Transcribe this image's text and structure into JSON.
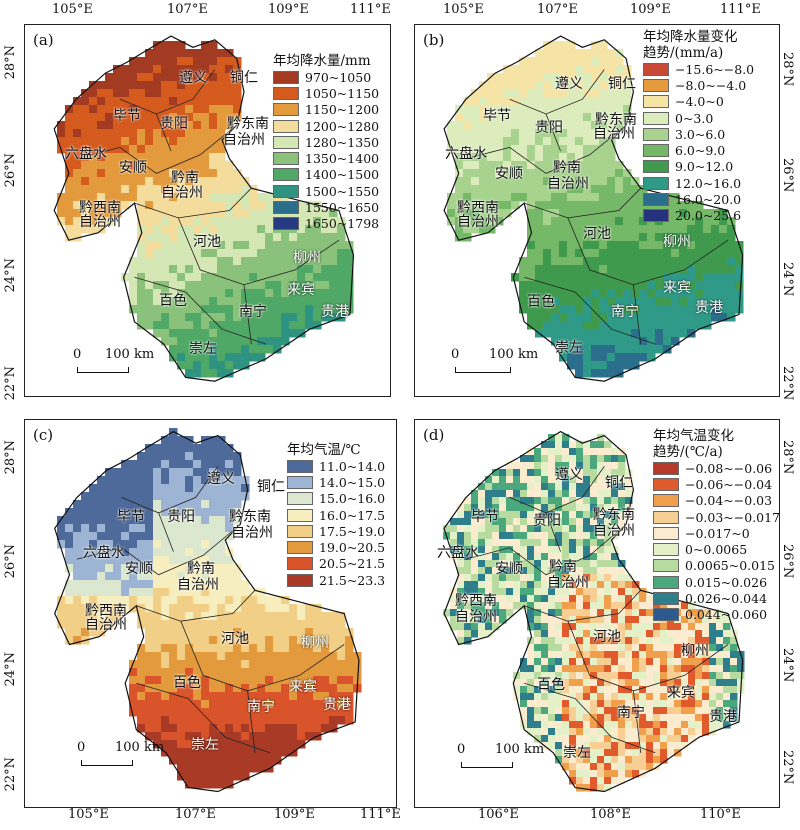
{
  "top_axis_labels": [
    "105°E",
    "107°E",
    "109°E",
    "111°E",
    "105°E",
    "107°E",
    "109°E",
    "111°E"
  ],
  "bottom_axis_labels": [
    "105°E",
    "107°E",
    "109°E",
    "111°E",
    "106°E",
    "108°E",
    "110°E"
  ],
  "lat_labels_left": [
    "28°N",
    "26°N",
    "24°N",
    "22°N",
    "28°N",
    "26°N",
    "24°N",
    "22°N"
  ],
  "lat_labels_right": [
    "28°N",
    "26°N",
    "24°N",
    "22°N",
    "28°N",
    "26°N",
    "24°N",
    "22°N"
  ],
  "scale_label": "100 km",
  "scale_zero": "0",
  "cities": {
    "zunyi": "遵义",
    "tongren": "铜仁",
    "bijie": "毕节",
    "guiyang": "贵阳",
    "qiandongnan": "黔东南",
    "zizhizhou": "自治州",
    "liupanshui": "六盘水",
    "anshun": "安顺",
    "qiannan": "黔南",
    "qianxinan": "黔西南",
    "hechi": "河池",
    "liuzhou": "柳州",
    "laibin": "来宾",
    "baise": "百色",
    "nanning": "南宁",
    "guigang": "贵港",
    "chongzuo": "崇左"
  },
  "panels": [
    {
      "label": "(a)",
      "legend_title": [
        "年均降水量/mm"
      ],
      "colors": [
        "#a33a22",
        "#d55a1e",
        "#e39a3c",
        "#f3dc9c",
        "#d4e7b4",
        "#8ac27c",
        "#4fa866",
        "#2e9481",
        "#2b6e8c",
        "#253a80"
      ],
      "classes": [
        "970~1050",
        "1050~1150",
        "1150~1200",
        "1200~1280",
        "1280~1350",
        "1350~1400",
        "1400~1500",
        "1500~1550",
        "1550~1650",
        "1650~1798"
      ]
    },
    {
      "label": "(b)",
      "legend_title": [
        "年均降水量变化",
        "趋势/(mm/a)"
      ],
      "colors": [
        "#c94a34",
        "#e69a40",
        "#f6e4a6",
        "#dcecbc",
        "#a8d38f",
        "#74b868",
        "#3f9a4e",
        "#2f9a88",
        "#2b6e8c",
        "#26327e"
      ],
      "classes": [
        "−15.6~−8.0",
        "−8.0~−4.0",
        "−4.0~0",
        "0~3.0",
        "3.0~6.0",
        "6.0~9.0",
        "9.0~12.0",
        "12.0~16.0",
        "16.0~20.0",
        "20.0~25.6"
      ]
    },
    {
      "label": "(c)",
      "legend_title": [
        "年均气温/℃"
      ],
      "colors": [
        "#4d6a9a",
        "#9db4d4",
        "#dbe8cf",
        "#f7eebf",
        "#f2cf86",
        "#e39a3c",
        "#d9542a",
        "#a83a26"
      ],
      "classes": [
        "11.0~14.0",
        "14.0~15.0",
        "15.0~16.0",
        "16.0~17.5",
        "17.5~19.0",
        "19.0~20.5",
        "20.5~21.5",
        "21.5~23.3"
      ]
    },
    {
      "label": "(d)",
      "legend_title": [
        "年均气温变化",
        "趋势/(℃/a)"
      ],
      "colors": [
        "#b53a2a",
        "#e05a2c",
        "#f0a04c",
        "#f7cf94",
        "#fbeccf",
        "#e4f0c8",
        "#b8dca0",
        "#4aa87c",
        "#2f7e8c",
        "#2c5a8e"
      ],
      "classes": [
        "−0.08~−0.06",
        "−0.06~−0.04",
        "−0.04~−0.03",
        "−0.03~−0.017",
        "−0.017~0",
        "0~0.0065",
        "0.0065~0.015",
        "0.015~0.026",
        "0.026~0.044",
        "0.044~0.060"
      ]
    }
  ]
}
